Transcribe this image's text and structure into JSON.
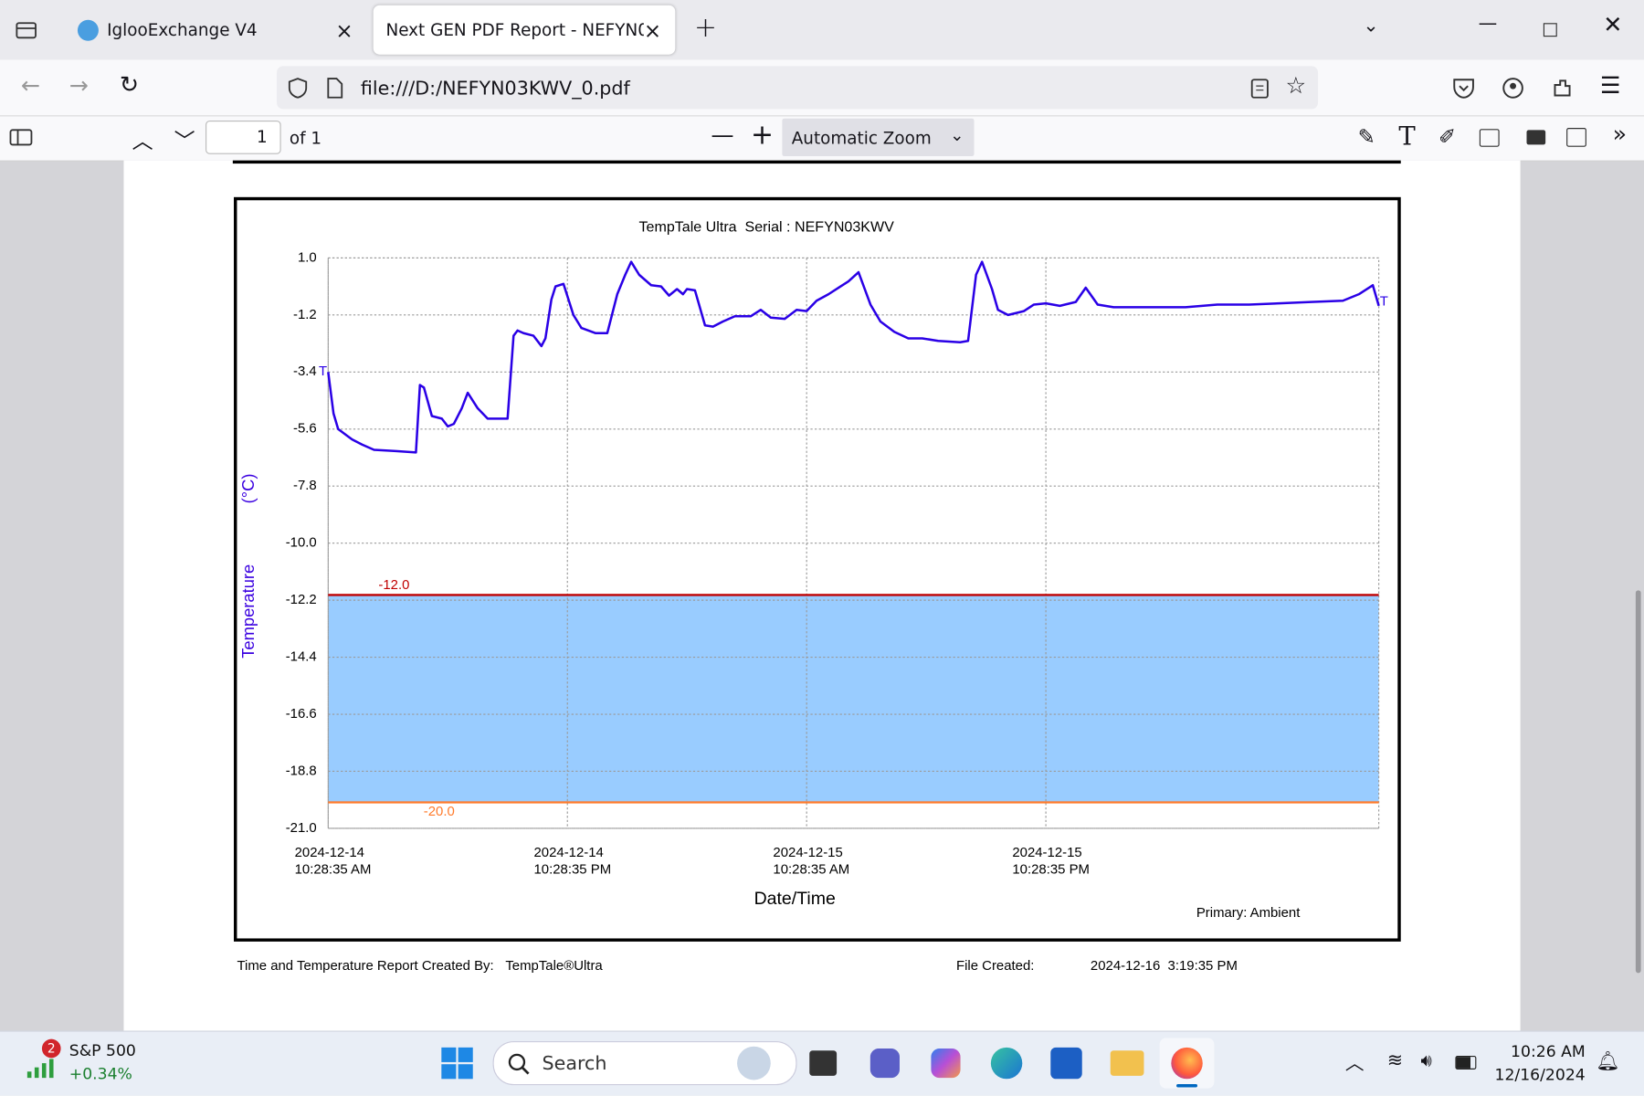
{
  "browser": {
    "tabs": [
      "IglooExchange V4",
      "Next GEN PDF Report - NEFYN03KWV"
    ],
    "url": "file:///D:/NEFYN03KWV_0.pdf",
    "page_number": 1,
    "page_count": "of 1",
    "zoom": "Automatic Zoom"
  },
  "chart_data": {
    "type": "line",
    "title": "TempTale Ultra  Serial : NEFYN03KWV",
    "y_label": "Temperature",
    "y_unit": "(°C)",
    "x_label": "Date/Time",
    "note": "Primary: Ambient",
    "start_label": "T",
    "end_label": "T",
    "color": "#2a00e6",
    "band_color": "#99ccff",
    "grid": true,
    "thresholds": [
      {
        "value": -12,
        "label": "-12.0",
        "color": "#c00000"
      },
      {
        "value": -20,
        "label": "-20.0",
        "color": "#ff7a2a"
      }
    ],
    "ylim": [
      -21,
      1
    ],
    "yticks": [
      {
        "value": 1,
        "label": "1.0"
      },
      -1.2,
      -3.4,
      -5.6,
      -7.8,
      {
        "value": -10,
        "label": "-10.0"
      },
      -12.2,
      -14.4,
      -16.6,
      -18.8,
      {
        "value": -21,
        "label": "-21.0"
      }
    ],
    "xlim": [
      "2024-12-14T10:28:35",
      "2024-12-16T15:10:35"
    ],
    "xticks": [
      {
        "value": "2024-12-14T10:28:35",
        "label": "2024-12-14\n10:28:35 AM"
      },
      {
        "value": "2024-12-14T22:28:35",
        "label": "2024-12-14\n10:28:35 PM"
      },
      {
        "value": "2024-12-15T10:28:35",
        "label": "2024-12-15\n10:28:35 AM"
      },
      {
        "value": "2024-12-15T22:28:35",
        "label": "2024-12-15\n10:28:35 PM"
      }
    ],
    "x": [
      "2024-12-14T10:28:35",
      "2024-12-14T10:44:35",
      "2024-12-14T10:58:35",
      "2024-12-14T11:40:35",
      "2024-12-14T12:10:35",
      "2024-12-14T12:46:35",
      "2024-12-14T13:52:35",
      "2024-12-14T14:52:35",
      "2024-12-14T15:04:35",
      "2024-12-14T15:16:35",
      "2024-12-14T15:40:35",
      "2024-12-14T16:10:35",
      "2024-12-14T16:28:35",
      "2024-12-14T16:46:35",
      "2024-12-14T17:10:35",
      "2024-12-14T17:28:35",
      "2024-12-14T17:58:35",
      "2024-12-14T18:28:35",
      "2024-12-14T18:58:35",
      "2024-12-14T19:28:35",
      "2024-12-14T19:46:35",
      "2024-12-14T19:58:35",
      "2024-12-14T20:16:35",
      "2024-12-14T20:46:35",
      "2024-12-14T21:10:35",
      "2024-12-14T21:22:35",
      "2024-12-14T21:40:35",
      "2024-12-14T21:52:35",
      "2024-12-14T22:16:35",
      "2024-12-14T22:46:35",
      "2024-12-14T23:10:35",
      "2024-12-14T23:52:35",
      "2024-12-15T00:28:35",
      "2024-12-15T00:58:35",
      "2024-12-15T01:22:35",
      "2024-12-15T01:40:35",
      "2024-12-15T02:04:35",
      "2024-12-15T02:40:35",
      "2024-12-15T03:10:35",
      "2024-12-15T03:34:35",
      "2024-12-15T03:58:35",
      "2024-12-15T04:16:35",
      "2024-12-15T04:28:35",
      "2024-12-15T04:52:35",
      "2024-12-15T05:22:35",
      "2024-12-15T05:46:35",
      "2024-12-15T06:16:35",
      "2024-12-15T06:52:35",
      "2024-12-15T07:40:35",
      "2024-12-15T08:10:35",
      "2024-12-15T08:40:35",
      "2024-12-15T09:22:35",
      "2024-12-15T09:58:35",
      "2024-12-15T10:28:35",
      "2024-12-15T10:58:35",
      "2024-12-15T11:34:35",
      "2024-12-15T12:04:35",
      "2024-12-15T12:34:35",
      "2024-12-15T13:04:35",
      "2024-12-15T13:40:35",
      "2024-12-15T14:10:35",
      "2024-12-15T14:52:35",
      "2024-12-15T15:34:35",
      "2024-12-15T16:16:35",
      "2024-12-15T17:04:35",
      "2024-12-15T18:10:35",
      "2024-12-15T18:34:35",
      "2024-12-15T18:58:35",
      "2024-12-15T19:16:35",
      "2024-12-15T19:46:35",
      "2024-12-15T20:04:35",
      "2024-12-15T20:34:35",
      "2024-12-15T21:22:35",
      "2024-12-15T21:52:35",
      "2024-12-15T22:28:35",
      "2024-12-15T23:10:35",
      "2024-12-15T23:58:35",
      "2024-12-16T00:28:35",
      "2024-12-16T01:04:35",
      "2024-12-16T01:52:35",
      "2024-12-16T02:52:35",
      "2024-12-16T03:58:35",
      "2024-12-16T05:28:35",
      "2024-12-16T07:04:35",
      "2024-12-16T08:40:35",
      "2024-12-16T10:10:35",
      "2024-12-16T11:46:35",
      "2024-12-16T13:22:35",
      "2024-12-16T14:10:35",
      "2024-12-16T14:52:35",
      "2024-12-16T15:10:35"
    ],
    "values": [
      -3.4,
      -5.0,
      -5.6,
      -6.0,
      -6.2,
      -6.4,
      -6.45,
      -6.5,
      -3.9,
      -4.0,
      -5.1,
      -5.2,
      -5.5,
      -5.4,
      -4.8,
      -4.2,
      -4.8,
      -5.2,
      -5.2,
      -5.2,
      -2.0,
      -1.8,
      -1.9,
      -2.0,
      -2.4,
      -2.1,
      -0.6,
      -0.1,
      0.0,
      -1.2,
      -1.7,
      -1.9,
      -1.9,
      -0.4,
      0.35,
      0.85,
      0.35,
      -0.05,
      -0.1,
      -0.45,
      -0.2,
      -0.4,
      -0.2,
      -0.25,
      -1.6,
      -1.65,
      -1.45,
      -1.25,
      -1.25,
      -1.0,
      -1.3,
      -1.35,
      -1.0,
      -1.05,
      -0.65,
      -0.4,
      -0.15,
      0.1,
      0.45,
      -0.8,
      -1.45,
      -1.85,
      -2.1,
      -2.1,
      -2.2,
      -2.25,
      -2.2,
      0.35,
      0.85,
      -0.2,
      -1.0,
      -1.2,
      -1.05,
      -0.8,
      -0.75,
      -0.85,
      -0.7,
      -0.15,
      -0.8,
      -0.9,
      -0.9,
      -0.9,
      -0.9,
      -0.8,
      -0.8,
      -0.75,
      -0.7,
      -0.65,
      -0.4,
      -0.05,
      -0.85
    ]
  },
  "report_footer": {
    "created_by_label": "Time and Temperature Report Created By:",
    "created_by": "TempTale®Ultra",
    "file_created_label": "File Created:",
    "file_created": "2024-12-16  3:19:35 PM"
  },
  "taskbar": {
    "widget_badge": "2",
    "widget_title": "S&P 500",
    "widget_value": "+0.34%",
    "search": "Search",
    "time": "10:26 AM",
    "date": "12/16/2024"
  }
}
